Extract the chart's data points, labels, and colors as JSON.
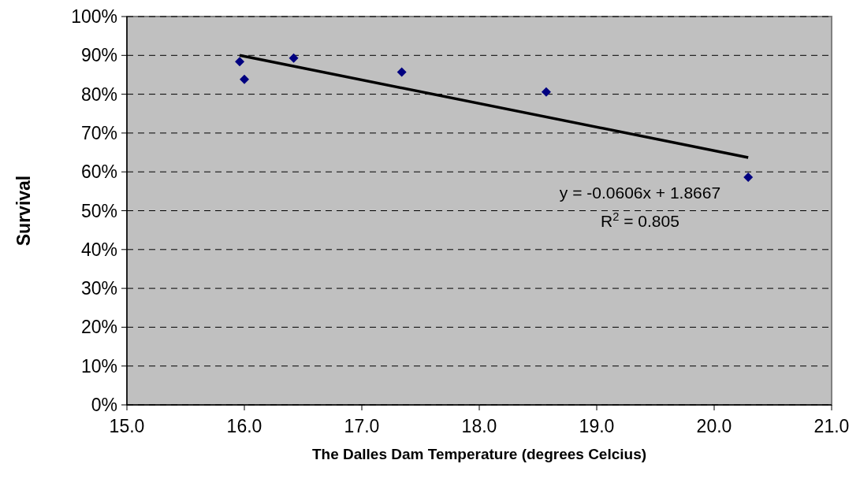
{
  "chart_data": {
    "type": "scatter",
    "xlabel": "The Dalles Dam Temperature (degrees Celcius)",
    "ylabel": "Survival",
    "xlim": [
      15,
      21
    ],
    "xticks": [
      {
        "value": 15,
        "label": "15.0"
      },
      {
        "value": 16,
        "label": "16.0"
      },
      {
        "value": 17,
        "label": "17.0"
      },
      {
        "value": 18,
        "label": "18.0"
      },
      {
        "value": 19,
        "label": "19.0"
      },
      {
        "value": 20,
        "label": "20.0"
      },
      {
        "value": 21,
        "label": "21.0"
      }
    ],
    "ylim": [
      0,
      100
    ],
    "yticks": [
      {
        "value": 0,
        "label": "0%"
      },
      {
        "value": 10,
        "label": "10%"
      },
      {
        "value": 20,
        "label": "20%"
      },
      {
        "value": 30,
        "label": "30%"
      },
      {
        "value": 40,
        "label": "40%"
      },
      {
        "value": 50,
        "label": "50%"
      },
      {
        "value": 60,
        "label": "60%"
      },
      {
        "value": 70,
        "label": "70%"
      },
      {
        "value": 80,
        "label": "80%"
      },
      {
        "value": 90,
        "label": "90%"
      },
      {
        "value": 100,
        "label": "100%"
      }
    ],
    "grid": "y",
    "series": [
      {
        "color": "#000080",
        "marker": "diamond",
        "x": [
          15.96,
          16.0,
          16.42,
          17.34,
          18.57,
          20.29
        ],
        "values": [
          88.4,
          83.8,
          89.3,
          85.7,
          80.6,
          58.6
        ]
      },
      {
        "type": "line",
        "color": "#000000",
        "marker": "none",
        "line_style": "solid",
        "x": [
          15.96,
          20.29
        ],
        "values": [
          90,
          63.7
        ]
      }
    ],
    "annotations": [
      "y = -0.0606x + 1.8667",
      "R$^{2}$ = 0.805"
    ]
  }
}
